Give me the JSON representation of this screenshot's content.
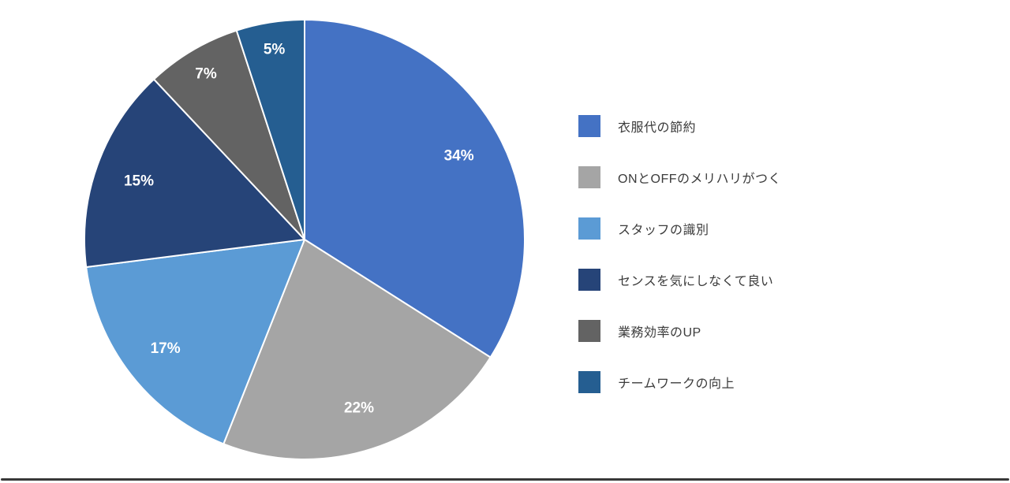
{
  "chart_data": {
    "type": "pie",
    "title": "",
    "legend_position": "right",
    "start_angle_deg": 0,
    "direction": "clockwise",
    "slice_border_color": "#ffffff",
    "label_color": "#ffffff",
    "segments": [
      {
        "label": "衣服代の節約",
        "value": 34,
        "display": "34%",
        "color": "#4472C4"
      },
      {
        "label": "ONとOFFのメリハリがつく",
        "value": 22,
        "display": "22%",
        "color": "#A5A5A5"
      },
      {
        "label": "スタッフの識別",
        "value": 17,
        "display": "17%",
        "color": "#5B9BD5"
      },
      {
        "label": "センスを気にしなくて良い",
        "value": 15,
        "display": "15%",
        "color": "#264478"
      },
      {
        "label": "業務効率のUP",
        "value": 7,
        "display": "7%",
        "color": "#636363"
      },
      {
        "label": "チームワークの向上",
        "value": 5,
        "display": "5%",
        "color": "#255E91"
      }
    ]
  }
}
